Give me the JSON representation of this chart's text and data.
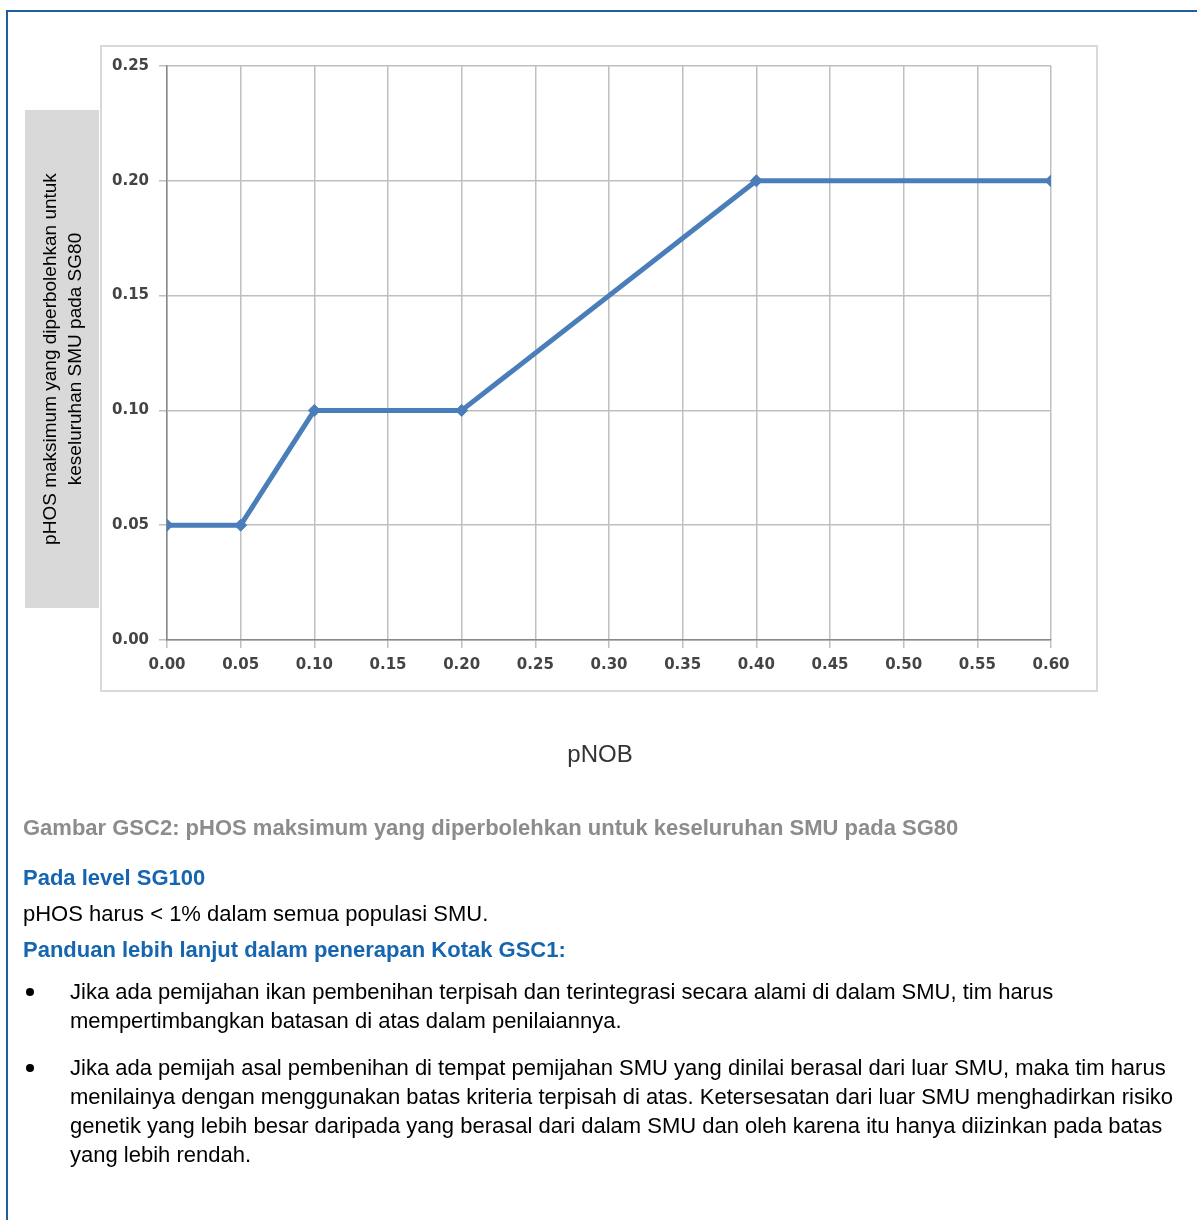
{
  "chart_data": {
    "type": "line",
    "xlabel": "pNOB",
    "ylabel": "pHOS maksimum yang diperbolehkan untuk keseluruhan SMU pada SG80",
    "x": [
      0,
      0.05,
      0.1,
      0.2,
      0.4,
      0.6
    ],
    "series": [
      {
        "color": "#4a7ebb",
        "values": [
          0.05,
          0.05,
          0.1,
          0.1,
          0.2,
          0.2
        ]
      }
    ],
    "xlim": [
      0,
      0.6
    ],
    "xticks": [
      {
        "value": 0,
        "label": "0.00"
      },
      {
        "value": 0.05,
        "label": "0.05"
      },
      {
        "value": 0.1,
        "label": "0.10"
      },
      {
        "value": 0.15,
        "label": "0.15"
      },
      {
        "value": 0.2,
        "label": "0.20"
      },
      {
        "value": 0.25,
        "label": "0.25"
      },
      {
        "value": 0.3,
        "label": "0.30"
      },
      {
        "value": 0.35,
        "label": "0.35"
      },
      {
        "value": 0.4,
        "label": "0.40"
      },
      {
        "value": 0.45,
        "label": "0.45"
      },
      {
        "value": 0.5,
        "label": "0.50"
      },
      {
        "value": 0.55,
        "label": "0.55"
      },
      {
        "value": 0.6,
        "label": "0.60"
      }
    ],
    "ylim": [
      0,
      0.25
    ],
    "yticks": [
      {
        "value": 0,
        "label": "0.00"
      },
      {
        "value": 0.05,
        "label": "0.05"
      },
      {
        "value": 0.1,
        "label": "0.10"
      },
      {
        "value": 0.15,
        "label": "0.15"
      },
      {
        "value": 0.2,
        "label": "0.20"
      },
      {
        "value": 0.25,
        "label": "0.25"
      }
    ],
    "grid": true,
    "marker": "diamond",
    "line_style": "solid",
    "legend": false,
    "annotations": [
      "Gambar GSC2:  pHOS maksimum yang diperbolehkan untuk keseluruhan SMU pada SG80",
      "Pada level SG100",
      "pHOS harus < 1% dalam semua populasi SMU.",
      "Panduan lebih lanjut dalam penerapan Kotak GSC1:",
      "Jika ada pemijahan ikan pembenihan terpisah dan terintegrasi secara alami di dalam SMU, tim harus mempertimbangkan batasan di atas dalam penilaiannya.",
      "Jika ada pemijah asal pembenihan di tempat pemijahan SMU yang dinilai berasal dari luar SMU, maka tim harus menilainya dengan menggunakan batas kriteria terpisah di atas. Ketersesatan dari luar SMU menghadirkan risiko genetik yang lebih besar daripada yang berasal dari dalam SMU dan oleh karena itu hanya diizinkan pada batas yang lebih rendah."
    ]
  }
}
